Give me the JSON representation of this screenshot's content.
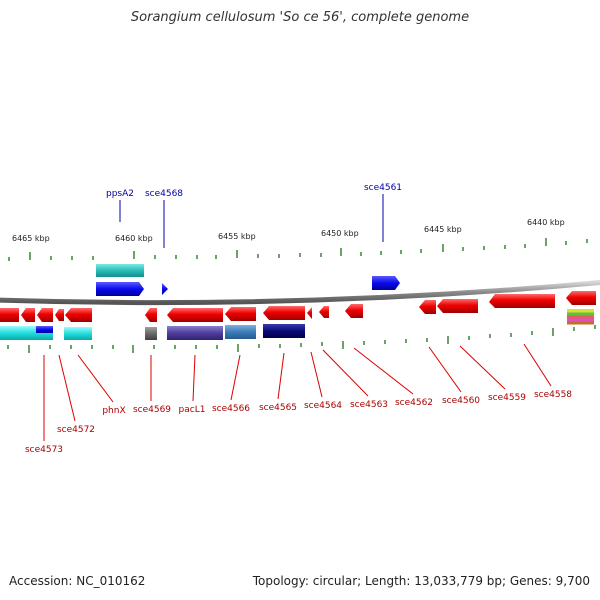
{
  "title": "Sorangium cellulosum 'So ce 56', complete genome",
  "footer": {
    "accession": "Accession: NC_010162",
    "info": "Topology: circular; Length: 13,033,779 bp; Genes: 9,700"
  },
  "scale_labels": [
    "6465 kbp",
    "6460 kbp",
    "6455 kbp",
    "6450 kbp",
    "6445 kbp",
    "6440 kbp"
  ],
  "colors": {
    "forward_gene": "#1010e0",
    "reverse_gene": "#e80000",
    "top_label": "#0000aa",
    "bottom_label": "#aa0000",
    "backbone": "#909090",
    "tick": "#2a7a2a"
  },
  "top_labels": [
    "ppsA2",
    "sce4568",
    "sce4561"
  ],
  "bottom_labels": [
    "sce4573",
    "sce4572",
    "phnX",
    "sce4569",
    "pacL1",
    "sce4566",
    "sce4565",
    "sce4564",
    "sce4563",
    "sce4562",
    "sce4560",
    "sce4559",
    "sce4558"
  ]
}
